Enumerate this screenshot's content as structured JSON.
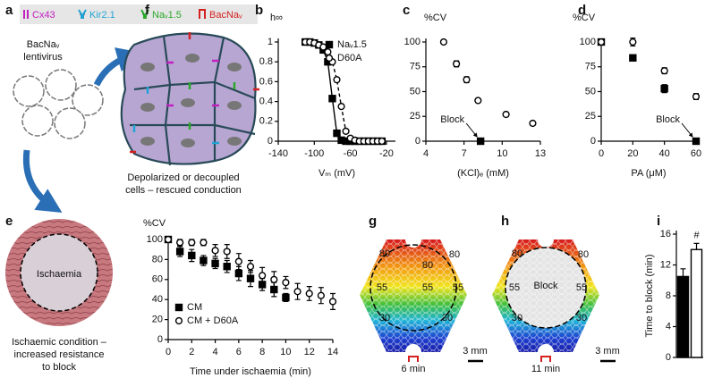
{
  "figure_a": {
    "label": "a",
    "legend": [
      "Cx43",
      "Kir2.1",
      "Naᵥ1.5",
      "BacNaᵥ"
    ],
    "virus_label": [
      "BacNaᵥ",
      "lentivirus"
    ],
    "caption": [
      "Depolarized or decoupled",
      "cells – rescued conduction"
    ]
  },
  "figure_e": {
    "label": "e",
    "region": "Ischaemia",
    "caption": [
      "Ischaemic condition –",
      "increased resistance",
      "to block"
    ]
  },
  "figure_g": {
    "label": "g",
    "contours": [
      "80",
      "80",
      "80",
      "55",
      "55",
      "55",
      "30",
      "30"
    ],
    "time": "6 min",
    "scale": "3 mm"
  },
  "figure_h": {
    "label": "h",
    "contours": [
      "80",
      "80",
      "55",
      "55",
      "30",
      "30"
    ],
    "center": "Block",
    "time": "11 min",
    "scale": "3 mm"
  },
  "chart_data": [
    {
      "type": "line",
      "panel": "b",
      "ylabel": "h∞",
      "xlabel": "Vₘ (mV)",
      "xlim": [
        -140,
        -10
      ],
      "xticks": [
        -140,
        -100,
        -60,
        -20
      ],
      "ylim": [
        0,
        1
      ],
      "yticks": [
        0,
        0.2,
        0.4,
        0.6,
        0.8,
        1
      ],
      "x": [
        -110,
        -105,
        -100,
        -95,
        -90,
        -85,
        -80,
        -75,
        -70,
        -65,
        -60,
        -55,
        -50,
        -45,
        -40,
        -35,
        -30,
        -25
      ],
      "series": [
        {
          "name": "Naᵥ1.5",
          "color": "#000000",
          "marker": "square",
          "fill": "#000000",
          "line_style": "solid",
          "values": [
            1,
            1,
            0.99,
            0.97,
            0.92,
            0.8,
            0.43,
            0.08,
            0.01,
            0,
            0,
            0,
            0,
            0,
            0,
            0,
            0,
            0
          ]
        },
        {
          "name": "D60A",
          "color": "#000000",
          "marker": "circle",
          "fill": "#ffffff",
          "line_style": "dashed",
          "values": [
            1,
            1,
            0.99,
            0.97,
            0.95,
            0.9,
            0.8,
            0.62,
            0.35,
            0.1,
            0.03,
            0.01,
            0,
            0,
            0,
            0,
            0,
            0
          ]
        }
      ]
    },
    {
      "type": "scatter",
      "panel": "c",
      "ylabel": "%CV",
      "xlabel": "(KCl)ₑ (mM)",
      "annotation": "Block",
      "xlim": [
        4,
        13
      ],
      "xticks": [
        4,
        7,
        10,
        13
      ],
      "ylim": [
        0,
        100
      ],
      "yticks": [
        0,
        25,
        50,
        75,
        100
      ],
      "series": [
        {
          "color": "#000000",
          "marker": "circle",
          "fill": "#ffffff",
          "x": [
            5.4,
            6.4,
            7.2,
            8.1,
            10.3,
            12.4
          ],
          "values": [
            100,
            78,
            62,
            41,
            27,
            18
          ],
          "errors": [
            2,
            3,
            3,
            2,
            2,
            2
          ]
        },
        {
          "color": "#000000",
          "marker": "square",
          "fill": "#000000",
          "x": [
            8.3
          ],
          "values": [
            0
          ],
          "errors": [
            0
          ]
        }
      ]
    },
    {
      "type": "scatter",
      "panel": "d",
      "ylabel": "%CV",
      "xlabel": "PA (μM)",
      "annotation": "Block",
      "xlim": [
        0,
        60
      ],
      "xticks": [
        0,
        20,
        40,
        60
      ],
      "ylim": [
        0,
        100
      ],
      "yticks": [
        0,
        25,
        50,
        75,
        100
      ],
      "series": [
        {
          "color": "#000000",
          "marker": "square",
          "fill": "#000000",
          "x": [
            0,
            20,
            40,
            60
          ],
          "values": [
            100,
            84,
            53,
            0
          ],
          "errors": [
            0,
            2,
            4,
            0
          ]
        },
        {
          "color": "#000000",
          "marker": "circle",
          "fill": "#ffffff",
          "x": [
            0,
            20,
            40,
            60
          ],
          "values": [
            100,
            100,
            71,
            45
          ],
          "errors": [
            0,
            4,
            3,
            3
          ]
        }
      ]
    },
    {
      "type": "scatter",
      "panel": "f",
      "ylabel": "%CV",
      "xlabel": "Time under ischaemia (min)",
      "xlim": [
        0,
        14
      ],
      "xticks": [
        0,
        2,
        4,
        6,
        8,
        10,
        12,
        14
      ],
      "ylim": [
        0,
        100
      ],
      "yticks": [
        0,
        20,
        40,
        60,
        80,
        100
      ],
      "series": [
        {
          "name": "CM",
          "color": "#000000",
          "marker": "square",
          "fill": "#000000",
          "x": [
            0,
            1,
            2,
            3,
            4,
            5,
            6,
            7,
            8,
            9,
            10
          ],
          "values": [
            100,
            88,
            84,
            79,
            76,
            73,
            66,
            61,
            55,
            50,
            42
          ],
          "errors": [
            0,
            5,
            6,
            5,
            5,
            6,
            7,
            8,
            6,
            7,
            4
          ]
        },
        {
          "name": "CM + D60A",
          "color": "#000000",
          "marker": "circle",
          "fill": "#ffffff",
          "x": [
            0,
            1,
            2,
            3,
            4,
            5,
            6,
            7,
            8,
            9,
            10,
            11,
            12,
            13,
            14
          ],
          "values": [
            100,
            97,
            97,
            97,
            89,
            88,
            78,
            73,
            64,
            60,
            57,
            48,
            46,
            44,
            38
          ],
          "errors": [
            0,
            3,
            3,
            3,
            6,
            7,
            8,
            6,
            8,
            8,
            6,
            8,
            7,
            8,
            8
          ]
        }
      ]
    },
    {
      "type": "bar",
      "panel": "i",
      "ylabel": "Time to block (min)",
      "annotation": "#",
      "categories": [
        null,
        null
      ],
      "values": [
        10.5,
        14
      ],
      "errors": [
        1,
        0.8
      ],
      "colors": [
        "#000000",
        "#ffffff"
      ],
      "ylim": [
        0,
        16
      ],
      "yticks": [
        0,
        4,
        8,
        12,
        16
      ]
    }
  ]
}
